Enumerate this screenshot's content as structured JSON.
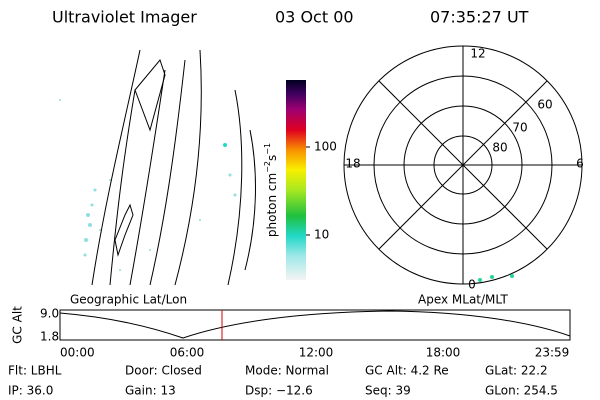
{
  "header": {
    "title": "Ultraviolet Imager",
    "date": "03 Oct 00",
    "time": "07:35:27 UT"
  },
  "colorbar": {
    "label": {
      "base": "photon cm",
      "exp1": "−2",
      "unit2": "s",
      "exp2": "−1"
    },
    "ticks": [
      "100",
      "10"
    ]
  },
  "polar": {
    "mlt_labels": [
      "12",
      "18",
      "6",
      "0"
    ],
    "lat_labels": [
      "60",
      "70",
      "80"
    ]
  },
  "altitude": {
    "left_label": "Geographic Lat/Lon",
    "right_label": "Apex MLat/MLT",
    "y_label": "GC Alt",
    "y_ticks": [
      "9.0",
      "1.8"
    ],
    "x_ticks": [
      "00:00",
      "06:00",
      "12:00",
      "18:00",
      "23:59"
    ]
  },
  "footer": {
    "rows": [
      [
        "Flt: LBHL",
        "Door: Closed",
        "Mode: Normal",
        "GC Alt: 4.2 Re",
        "GLat: 22.2"
      ],
      [
        "IP: 36.0",
        "Gain: 13",
        "Dsp: −12.6",
        "Seq: 39",
        "GLon: 254.5"
      ]
    ]
  }
}
